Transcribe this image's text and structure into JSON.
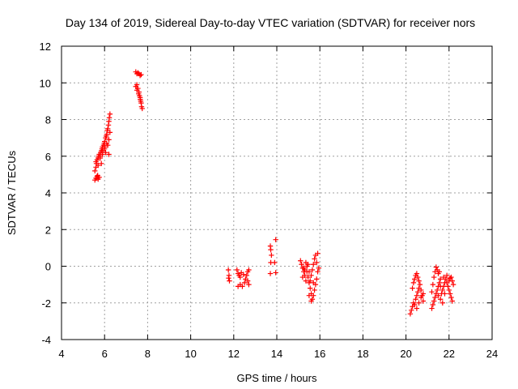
{
  "chart_data": {
    "type": "scatter",
    "title": "Day 134 of 2019, Sidereal Day-to-day VTEC variation (SDTVAR) for receiver nors",
    "xlabel": "GPS time / hours",
    "ylabel": "SDTVAR / TECUs",
    "xlim": [
      4,
      24
    ],
    "ylim": [
      -4,
      12
    ],
    "xticks": [
      4,
      6,
      8,
      10,
      12,
      14,
      16,
      18,
      20,
      22,
      24
    ],
    "yticks": [
      -4,
      -2,
      0,
      2,
      4,
      6,
      8,
      10,
      12
    ],
    "grid": true,
    "marker": "+",
    "color": "#ff0000",
    "series": [
      {
        "name": "SDTVAR",
        "points": [
          [
            5.55,
            4.7
          ],
          [
            5.6,
            4.8
          ],
          [
            5.65,
            4.9
          ],
          [
            5.7,
            4.75
          ],
          [
            5.75,
            4.85
          ],
          [
            5.55,
            5.2
          ],
          [
            5.6,
            5.4
          ],
          [
            5.62,
            5.6
          ],
          [
            5.65,
            5.8
          ],
          [
            5.7,
            5.9
          ],
          [
            5.72,
            6.0
          ],
          [
            5.75,
            6.1
          ],
          [
            5.8,
            6.0
          ],
          [
            5.82,
            6.2
          ],
          [
            5.85,
            6.3
          ],
          [
            5.88,
            6.4
          ],
          [
            5.9,
            6.5
          ],
          [
            5.92,
            6.3
          ],
          [
            5.95,
            6.6
          ],
          [
            5.98,
            6.7
          ],
          [
            6.0,
            6.8
          ],
          [
            6.02,
            6.5
          ],
          [
            6.05,
            7.0
          ],
          [
            6.08,
            7.1
          ],
          [
            6.1,
            7.2
          ],
          [
            6.12,
            7.4
          ],
          [
            6.15,
            7.5
          ],
          [
            6.18,
            7.7
          ],
          [
            6.2,
            7.9
          ],
          [
            6.22,
            8.1
          ],
          [
            6.25,
            8.3
          ],
          [
            5.6,
            5.7
          ],
          [
            5.7,
            5.5
          ],
          [
            5.8,
            5.9
          ],
          [
            5.9,
            6.1
          ],
          [
            6.0,
            6.4
          ],
          [
            6.1,
            6.7
          ],
          [
            6.2,
            6.9
          ],
          [
            6.25,
            7.3
          ],
          [
            6.2,
            6.1
          ],
          [
            5.68,
            4.95
          ],
          [
            5.85,
            5.6
          ],
          [
            6.05,
            6.2
          ],
          [
            6.15,
            6.6
          ],
          [
            7.45,
            10.6
          ],
          [
            7.5,
            10.5
          ],
          [
            7.55,
            10.55
          ],
          [
            7.6,
            10.5
          ],
          [
            7.65,
            10.4
          ],
          [
            7.7,
            10.45
          ],
          [
            7.45,
            9.8
          ],
          [
            7.5,
            9.6
          ],
          [
            7.55,
            9.7
          ],
          [
            7.6,
            9.5
          ],
          [
            7.62,
            9.3
          ],
          [
            7.65,
            9.2
          ],
          [
            7.68,
            9.0
          ],
          [
            7.7,
            8.9
          ],
          [
            7.72,
            8.7
          ],
          [
            7.75,
            8.6
          ],
          [
            7.5,
            9.9
          ],
          [
            7.58,
            9.4
          ],
          [
            7.66,
            9.1
          ],
          [
            11.75,
            -0.2
          ],
          [
            11.78,
            -0.5
          ],
          [
            11.8,
            -0.8
          ],
          [
            11.76,
            -0.65
          ],
          [
            12.15,
            -0.2
          ],
          [
            12.2,
            -0.4
          ],
          [
            12.25,
            -0.5
          ],
          [
            12.3,
            -0.6
          ],
          [
            12.2,
            -1.1
          ],
          [
            12.3,
            -1.0
          ],
          [
            12.4,
            -1.1
          ],
          [
            12.5,
            -0.9
          ],
          [
            12.55,
            -0.7
          ],
          [
            12.6,
            -0.5
          ],
          [
            12.65,
            -0.3
          ],
          [
            12.7,
            -0.2
          ],
          [
            12.65,
            -0.8
          ],
          [
            12.7,
            -1.0
          ],
          [
            12.45,
            -0.45
          ],
          [
            12.35,
            -0.35
          ],
          [
            13.7,
            1.1
          ],
          [
            13.72,
            0.9
          ],
          [
            13.75,
            0.6
          ],
          [
            13.72,
            0.2
          ],
          [
            13.7,
            -0.4
          ],
          [
            13.95,
            1.45
          ],
          [
            13.9,
            0.2
          ],
          [
            13.95,
            -0.35
          ],
          [
            15.1,
            0.3
          ],
          [
            15.15,
            0.1
          ],
          [
            15.2,
            -0.1
          ],
          [
            15.25,
            -0.3
          ],
          [
            15.3,
            -0.5
          ],
          [
            15.35,
            -0.8
          ],
          [
            15.4,
            -0.3
          ],
          [
            15.45,
            -0.6
          ],
          [
            15.5,
            -0.9
          ],
          [
            15.55,
            -1.2
          ],
          [
            15.6,
            -1.5
          ],
          [
            15.65,
            -1.8
          ],
          [
            15.7,
            -1.6
          ],
          [
            15.75,
            -1.3
          ],
          [
            15.8,
            -1.0
          ],
          [
            15.85,
            -0.7
          ],
          [
            15.9,
            -0.3
          ],
          [
            15.85,
            0.2
          ],
          [
            15.8,
            0.6
          ],
          [
            15.75,
            0.4
          ],
          [
            15.7,
            0.1
          ],
          [
            15.65,
            -0.2
          ],
          [
            15.6,
            -0.5
          ],
          [
            15.55,
            -0.8
          ],
          [
            15.5,
            -0.3
          ],
          [
            15.45,
            0.1
          ],
          [
            15.35,
            0.2
          ],
          [
            15.25,
            -0.1
          ],
          [
            15.5,
            -1.6
          ],
          [
            15.6,
            -1.9
          ],
          [
            15.95,
            -0.1
          ],
          [
            15.9,
            0.7
          ],
          [
            15.2,
            -0.6
          ],
          [
            15.3,
            -0.2
          ],
          [
            15.4,
            0.0
          ],
          [
            15.7,
            -0.9
          ],
          [
            20.2,
            -2.6
          ],
          [
            20.25,
            -2.4
          ],
          [
            20.3,
            -2.2
          ],
          [
            20.35,
            -2.0
          ],
          [
            20.4,
            -2.1
          ],
          [
            20.45,
            -1.8
          ],
          [
            20.5,
            -1.6
          ],
          [
            20.55,
            -1.4
          ],
          [
            20.6,
            -1.2
          ],
          [
            20.65,
            -1.0
          ],
          [
            20.7,
            -1.3
          ],
          [
            20.75,
            -1.6
          ],
          [
            20.8,
            -1.9
          ],
          [
            20.6,
            -0.8
          ],
          [
            20.55,
            -0.6
          ],
          [
            20.5,
            -0.4
          ],
          [
            20.45,
            -0.5
          ],
          [
            20.4,
            -0.7
          ],
          [
            20.35,
            -0.9
          ],
          [
            20.3,
            -1.2
          ],
          [
            20.5,
            -2.3
          ],
          [
            20.6,
            -2.0
          ],
          [
            20.7,
            -1.7
          ],
          [
            20.8,
            -1.5
          ],
          [
            21.2,
            -2.3
          ],
          [
            21.25,
            -2.1
          ],
          [
            21.3,
            -1.9
          ],
          [
            21.35,
            -1.7
          ],
          [
            21.4,
            -1.5
          ],
          [
            21.45,
            -1.3
          ],
          [
            21.5,
            -1.1
          ],
          [
            21.55,
            -0.9
          ],
          [
            21.6,
            -0.7
          ],
          [
            21.5,
            -0.4
          ],
          [
            21.45,
            -0.2
          ],
          [
            21.4,
            -0.05
          ],
          [
            21.35,
            -0.3
          ],
          [
            21.3,
            -0.6
          ],
          [
            21.25,
            -1.0
          ],
          [
            21.2,
            -1.4
          ],
          [
            21.65,
            -1.5
          ],
          [
            21.7,
            -1.3
          ],
          [
            21.75,
            -1.1
          ],
          [
            21.8,
            -0.9
          ],
          [
            21.85,
            -0.7
          ],
          [
            21.9,
            -0.9
          ],
          [
            21.95,
            -1.1
          ],
          [
            22.0,
            -1.3
          ],
          [
            22.05,
            -1.5
          ],
          [
            22.1,
            -1.7
          ],
          [
            22.15,
            -1.9
          ],
          [
            22.0,
            -0.8
          ],
          [
            22.1,
            -0.6
          ],
          [
            22.15,
            -0.8
          ],
          [
            22.2,
            -1.0
          ],
          [
            21.9,
            -0.5
          ],
          [
            21.6,
            -1.8
          ],
          [
            21.7,
            -2.0
          ],
          [
            21.5,
            -1.6
          ],
          [
            21.8,
            -1.5
          ],
          [
            21.55,
            -0.3
          ],
          [
            21.6,
            -1.1
          ],
          [
            21.75,
            -0.6
          ],
          [
            22.05,
            -0.65
          ]
        ]
      }
    ]
  }
}
